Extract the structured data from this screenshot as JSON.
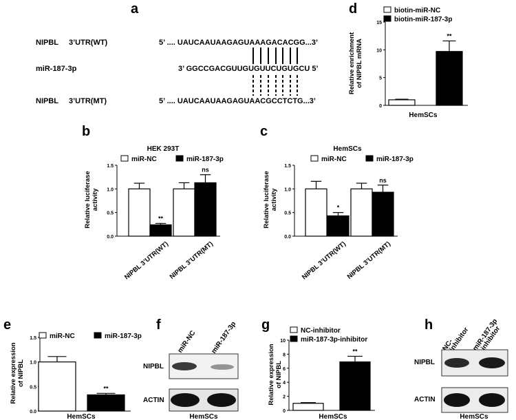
{
  "panels": {
    "a": {
      "letter": "a",
      "row_wt_name": "NIPBL",
      "row_wt_kind": "3’UTR(WT)",
      "row_wt_seq": "5’ .... UAUCAAUAAGAGUAAAGACACGG...3’",
      "row_mir_name": "miR-187-3p",
      "row_mir_seq": "3’  GGCCGACGUUGUGUUCUGUGCU   5’",
      "row_mt_name": "NIPBL",
      "row_mt_kind": "3’UTR(MT)",
      "row_mt_seq": "5’ .... UAUCAAUAAGAGUAACGCCTCTG...3’"
    },
    "b": {
      "letter": "b"
    },
    "c": {
      "letter": "c"
    },
    "d": {
      "letter": "d"
    },
    "e": {
      "letter": "e"
    },
    "f": {
      "letter": "f",
      "lane_labels": [
        "miR-NC",
        "miR-187-3p"
      ],
      "row_labels": [
        "NIPBL",
        "ACTIN"
      ],
      "caption": "HemSCs"
    },
    "g": {
      "letter": "g"
    },
    "h": {
      "letter": "h",
      "lane_labels_line1": [
        "NC-",
        "miR-187-3p"
      ],
      "lane_labels_line2": [
        "inhibitor",
        "-inhibitor"
      ],
      "row_labels": [
        "NIPBL",
        "ACTIN"
      ],
      "caption": "HemSCs"
    }
  },
  "chart_data": [
    {
      "id": "b",
      "type": "bar",
      "title": "HEK 293T",
      "ylabel_lines": [
        "Relative luciferase",
        "activity"
      ],
      "ylim": [
        0,
        1.5
      ],
      "yticks": [
        "0.0",
        "0.5",
        "1.0",
        "1.5"
      ],
      "categories": [
        "NIPBL 3’UTR(WT)",
        "NIPBL 3’UTR(MT)"
      ],
      "series": [
        {
          "name": "miR-NC",
          "fill": "#ffffff",
          "values": [
            1.0,
            1.0
          ],
          "errors": [
            0.12,
            0.13
          ]
        },
        {
          "name": "miR-187-3p",
          "fill": "#000000",
          "values": [
            0.24,
            1.13
          ],
          "errors": [
            0.03,
            0.17
          ]
        }
      ],
      "annotations": [
        {
          "series": 1,
          "category": 0,
          "text": "**"
        },
        {
          "series": 1,
          "category": 1,
          "text": "ns"
        }
      ]
    },
    {
      "id": "c",
      "type": "bar",
      "title": "HemSCs",
      "ylabel_lines": [
        "Relative luciferase",
        "activity"
      ],
      "ylim": [
        0,
        1.5
      ],
      "yticks": [
        "0.0",
        "0.5",
        "1.0",
        "1.5"
      ],
      "categories": [
        "NIPBL 3’UTR(WT)",
        "NIPBL 3’UTR(MT)"
      ],
      "series": [
        {
          "name": "miR-NC",
          "fill": "#ffffff",
          "values": [
            1.0,
            1.0
          ],
          "errors": [
            0.16,
            0.12
          ]
        },
        {
          "name": "miR-187-3p",
          "fill": "#000000",
          "values": [
            0.43,
            0.93
          ],
          "errors": [
            0.07,
            0.15
          ]
        }
      ],
      "annotations": [
        {
          "series": 1,
          "category": 0,
          "text": "*"
        },
        {
          "series": 1,
          "category": 1,
          "text": "ns"
        }
      ]
    },
    {
      "id": "d",
      "type": "bar",
      "ylabel_lines": [
        "Relative enrichment",
        "of NIPBL mRNA"
      ],
      "ylim": [
        0,
        15
      ],
      "yticks": [
        "0",
        "5",
        "10",
        "15"
      ],
      "categories": [
        "biotin-miR-NC",
        "biotin-miR-187-3p"
      ],
      "xlabel": "HemSCs",
      "series": [
        {
          "name": "biotin-miR-NC",
          "fill": "#ffffff",
          "values": [
            1.0,
            null
          ],
          "errors": [
            0.1,
            null
          ]
        },
        {
          "name": "biotin-miR-187-3p",
          "fill": "#000000",
          "values": [
            null,
            9.7
          ],
          "errors": [
            null,
            1.9
          ]
        }
      ],
      "annotations": [
        {
          "series": 1,
          "category": 1,
          "text": "**"
        }
      ]
    },
    {
      "id": "e",
      "type": "bar",
      "ylabel_lines": [
        "Relative expression",
        "of NIPBL"
      ],
      "ylim": [
        0,
        1.5
      ],
      "yticks": [
        "0.0",
        "0.5",
        "1.0",
        "1.5"
      ],
      "categories": [
        "miR-NC",
        "miR-187-3p"
      ],
      "xlabel": "HemSCs",
      "series": [
        {
          "name": "miR-NC",
          "fill": "#ffffff",
          "values": [
            1.0,
            null
          ],
          "errors": [
            0.11,
            null
          ]
        },
        {
          "name": "miR-187-3p",
          "fill": "#000000",
          "values": [
            null,
            0.33
          ],
          "errors": [
            null,
            0.03
          ]
        }
      ],
      "annotations": [
        {
          "series": 1,
          "category": 1,
          "text": "**"
        }
      ]
    },
    {
      "id": "g",
      "type": "bar",
      "ylabel_lines": [
        "Relative expression",
        "of NIPBL"
      ],
      "ylim": [
        0,
        10
      ],
      "yticks": [
        "0",
        "2",
        "4",
        "6",
        "8",
        "10"
      ],
      "categories": [
        "NC-inhibitor",
        "miR-187-3p-inhibitor"
      ],
      "xlabel": "HemSCs",
      "series": [
        {
          "name": "NC-inhibitor",
          "fill": "#ffffff",
          "values": [
            1.0,
            null
          ],
          "errors": [
            0.1,
            null
          ]
        },
        {
          "name": "miR-187-3p-inhibitor",
          "fill": "#000000",
          "values": [
            null,
            6.9
          ],
          "errors": [
            null,
            0.8
          ]
        }
      ],
      "annotations": [
        {
          "series": 1,
          "category": 1,
          "text": "**"
        }
      ]
    }
  ]
}
